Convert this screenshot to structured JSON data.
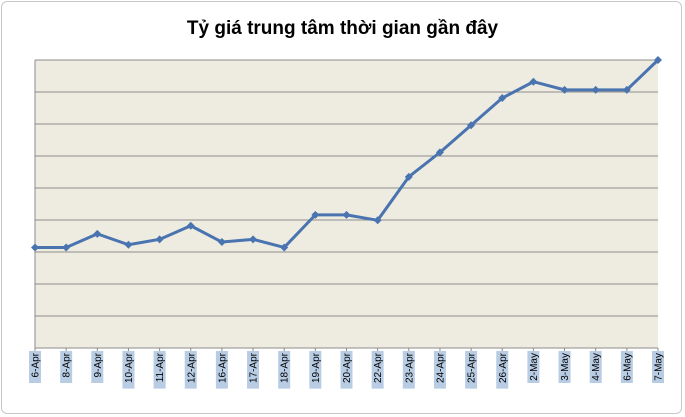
{
  "chart_data": {
    "type": "line",
    "title": "Tỷ giá trung tâm thời gian gần đây",
    "categories": [
      "6-Apr",
      "8-Apr",
      "9-Apr",
      "10-Apr",
      "11-Apr",
      "12-Apr",
      "16-Apr",
      "17-Apr",
      "18-Apr",
      "19-Apr",
      "20-Apr",
      "22-Apr",
      "23-Apr",
      "24-Apr",
      "25-Apr",
      "26-Apr",
      "2-May",
      "3-May",
      "4-May",
      "6-May",
      "7-May"
    ],
    "series": [
      {
        "values": [
          0.8,
          0.8,
          1.3,
          0.9,
          1.1,
          1.6,
          1.0,
          1.1,
          0.8,
          2.0,
          2.0,
          1.8,
          3.4,
          4.3,
          5.3,
          6.3,
          6.9,
          6.6,
          6.6,
          6.6,
          7.7
        ]
      }
    ],
    "ylim": [
      -2.9,
      7.7
    ],
    "grid": true,
    "y_tick_labels_shown": false,
    "legend": "none",
    "colors": {
      "line": "#4a74b0",
      "plot_background": "#eeece1",
      "gridline": "#8c8c8c",
      "tick_label_background": "#b8cce4"
    }
  }
}
